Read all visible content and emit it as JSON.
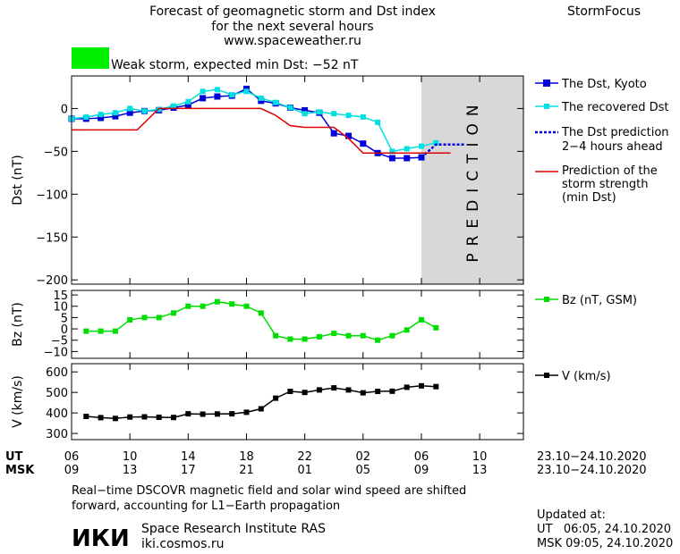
{
  "header": {
    "title_line1": "Forecast of geomagnetic storm and Dst index",
    "title_line2": "for the next several hours",
    "url": "www.spaceweather.ru",
    "brand": "StormFocus",
    "storm_label": "Weak storm, expected min Dst: −52 nT",
    "storm_color": "#00ee00"
  },
  "chart_data": [
    {
      "type": "line",
      "panel": "dst",
      "ylabel": "Dst (nT)",
      "ylim": [
        -205,
        38
      ],
      "yticks": [
        0,
        -50,
        -100,
        -150,
        -200
      ],
      "ytick_labels": [
        "0",
        "−50",
        "−100",
        "−150",
        "−200"
      ],
      "prediction_label": "PREDICTION",
      "series": [
        {
          "name": "The Dst, Kyoto",
          "color": "#0000dd",
          "x": [
            6,
            7,
            8,
            9,
            10,
            11,
            12,
            13,
            14,
            15,
            16,
            17,
            18,
            19,
            20,
            21,
            22,
            23,
            24,
            25,
            26,
            27,
            28,
            29,
            30
          ],
          "values": [
            -12,
            -12,
            -11,
            -9,
            -5,
            -3,
            -2,
            1,
            4,
            12,
            14,
            15,
            23,
            9,
            6,
            1,
            -2,
            -5,
            -29,
            -32,
            -41,
            -52,
            -58,
            -58,
            -57
          ]
        },
        {
          "name": "The recovered Dst",
          "color": "#00e0e0",
          "x": [
            6,
            7,
            8,
            9,
            10,
            11,
            12,
            13,
            14,
            15,
            16,
            17,
            18,
            19,
            20,
            21,
            22,
            23,
            24,
            25,
            26,
            27,
            28,
            29,
            30,
            31
          ],
          "values": [
            -12,
            -10,
            -7,
            -5,
            0,
            -3,
            -1,
            3,
            8,
            20,
            22,
            16,
            20,
            12,
            7,
            1,
            -6,
            -4,
            -6,
            -8,
            -10,
            -16,
            -50,
            -47,
            -44,
            -40
          ]
        },
        {
          "name": "The Dst prediction 2–4 hours ahead",
          "color": "#0000dd",
          "dashed": true,
          "x": [
            30,
            31,
            32,
            33
          ],
          "values": [
            -57,
            -42,
            -42,
            -42
          ]
        },
        {
          "name": "Prediction of the storm strength (min Dst)",
          "color": "#dd0000",
          "x": [
            6,
            10.5,
            12,
            19,
            20,
            21,
            22,
            24,
            25,
            26,
            27,
            28,
            32
          ],
          "values": [
            -25,
            -25,
            0,
            0,
            -8,
            -20,
            -22,
            -22,
            -35,
            -52,
            -52,
            -52,
            -52
          ]
        }
      ]
    },
    {
      "type": "line",
      "panel": "bz",
      "ylabel": "Bz (nT)",
      "ylim": [
        -13,
        17
      ],
      "yticks": [
        15,
        10,
        5,
        0,
        -5,
        -10
      ],
      "ytick_labels": [
        "15",
        "10",
        "5",
        "0",
        "−5",
        "−10"
      ],
      "series": [
        {
          "name": "Bz (nT, GSM)",
          "color": "#00dd00",
          "x": [
            7,
            8,
            9,
            10,
            11,
            12,
            13,
            14,
            15,
            16,
            17,
            18,
            19,
            20,
            21,
            22,
            23,
            24,
            25,
            26,
            27,
            28,
            29,
            30,
            31
          ],
          "values": [
            -1,
            -1,
            -1,
            4,
            5,
            5,
            7,
            10,
            10,
            12,
            11,
            10,
            7,
            -3,
            -4.5,
            -4.5,
            -3.5,
            -2,
            -3,
            -3,
            -5,
            -3,
            -0.5,
            4,
            0.5
          ]
        }
      ]
    },
    {
      "type": "line",
      "panel": "v",
      "ylabel": "V (km/s)",
      "ylim": [
        270,
        640
      ],
      "yticks": [
        600,
        500,
        400,
        300
      ],
      "ytick_labels": [
        "600",
        "500",
        "400",
        "300"
      ],
      "series": [
        {
          "name": "V (km/s)",
          "color": "#000000",
          "x": [
            7,
            8,
            9,
            10,
            11,
            12,
            13,
            14,
            15,
            16,
            17,
            18,
            19,
            20,
            21,
            22,
            23,
            24,
            25,
            26,
            27,
            28,
            29,
            30,
            31
          ],
          "values": [
            383,
            377,
            373,
            380,
            381,
            379,
            378,
            396,
            394,
            395,
            396,
            403,
            420,
            472,
            505,
            500,
            512,
            522,
            512,
            498,
            505,
            506,
            525,
            532,
            528
          ]
        }
      ]
    }
  ],
  "xaxis": {
    "xlim": [
      6,
      37
    ],
    "ticks": [
      6,
      10,
      14,
      18,
      22,
      26,
      30,
      34
    ],
    "ut_prefix": "UT",
    "msk_prefix": "MSK",
    "ut_labels": [
      "06",
      "10",
      "14",
      "18",
      "22",
      "02",
      "06",
      "10"
    ],
    "msk_labels": [
      "09",
      "13",
      "17",
      "21",
      "01",
      "05",
      "09",
      "13"
    ],
    "ut_range": "23.10−24.10.2020",
    "msk_range": "23.10−24.10.2020",
    "prediction_start": 30
  },
  "legend": {
    "dst_kyoto": "The Dst, Kyoto",
    "dst_recovered": "The recovered Dst",
    "pred_line1": "The Dst prediction",
    "pred_line2": "2−4 hours ahead",
    "strength_line1": "Prediction of the",
    "strength_line2": "storm strength",
    "strength_line3": "(min Dst)",
    "bz": "Bz (nT, GSM)",
    "v": "V (km/s)"
  },
  "footer": {
    "note_line1": "Real−time DSCOVR magnetic field and solar wind speed are shifted",
    "note_line2": "forward, accounting for L1−Earth propagation",
    "institute": "Space Research Institute RAS",
    "website": "iki.cosmos.ru",
    "logo_text": "ИКИ",
    "updated_label": "Updated at:",
    "updated_ut": "UT   06:05, 24.10.2020",
    "updated_msk": "MSK 09:05, 24.10.2020"
  }
}
